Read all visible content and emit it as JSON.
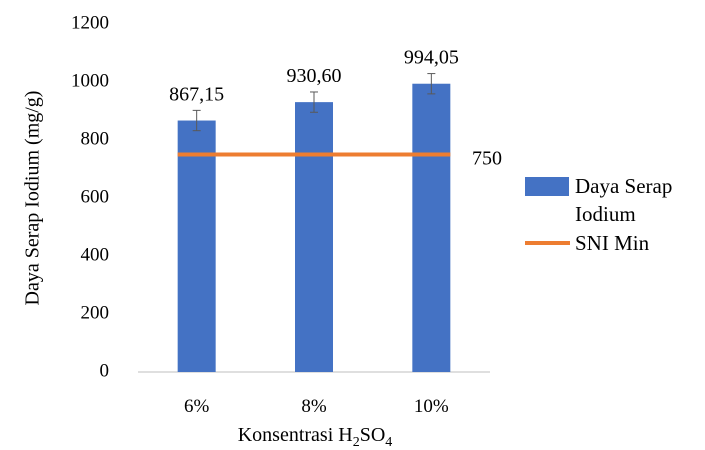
{
  "chart_data": {
    "type": "bar",
    "title": "",
    "xlabel": "Konsentrasi H2SO4",
    "xlabel_parts": {
      "base": "Konsentrasi H",
      "sub1": "2",
      "mid": "SO",
      "sub2": "4"
    },
    "ylabel": "Daya Serap Iodium (mg/g)",
    "categories": [
      "6%",
      "8%",
      "10%"
    ],
    "ylim": [
      0,
      1200
    ],
    "yticks": [
      0,
      200,
      400,
      600,
      800,
      1000,
      1200
    ],
    "grid": false,
    "legend_position": "right",
    "series": [
      {
        "name": "Daya Serap Iodium",
        "kind": "bar",
        "color": "#4472C4",
        "values": [
          867.15,
          930.6,
          994.05
        ],
        "labels": [
          "867,15",
          "930,60",
          "994,05"
        ],
        "error": [
          35,
          35,
          35
        ]
      },
      {
        "name": "SNI Min",
        "kind": "line",
        "color": "#ED7D31",
        "values": [
          750,
          750,
          750
        ],
        "end_label": "750"
      }
    ]
  }
}
